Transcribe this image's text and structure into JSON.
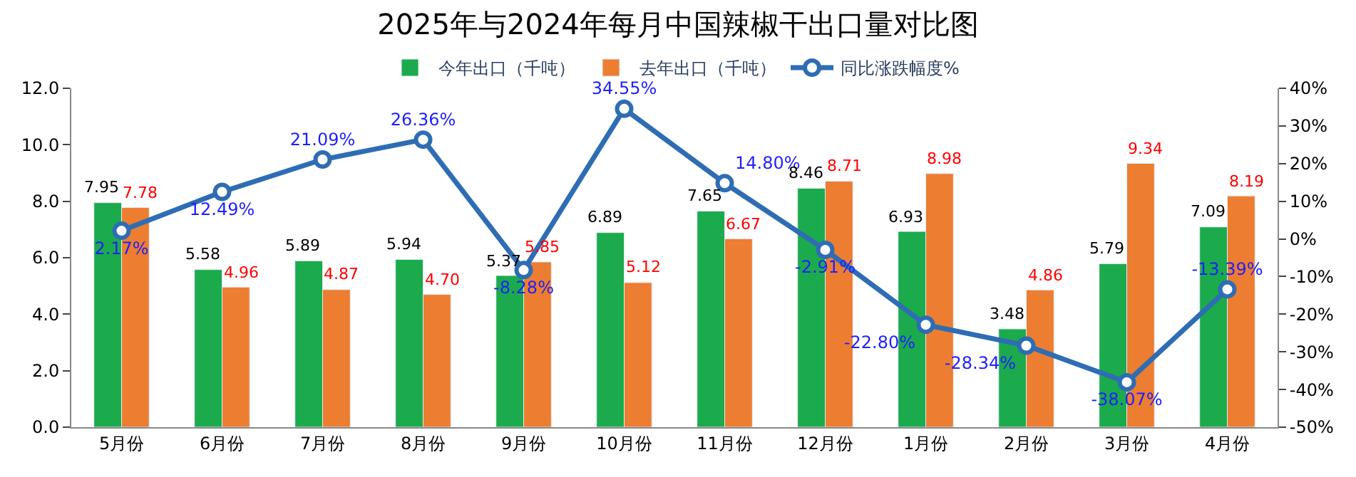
{
  "chart_data": {
    "type": "bar",
    "title": "2025年与2024年每月中国辣椒干出口量对比图",
    "categories": [
      "5月份",
      "6月份",
      "7月份",
      "8月份",
      "9月份",
      "10月份",
      "11月份",
      "12月份",
      "1月份",
      "2月份",
      "3月份",
      "4月份"
    ],
    "series": [
      {
        "name": "今年出口（千吨）",
        "color": "#1bab4c",
        "values": [
          7.95,
          5.58,
          5.89,
          5.94,
          5.37,
          6.89,
          7.65,
          8.46,
          6.93,
          3.48,
          5.79,
          7.09
        ],
        "value_labels": [
          "7.95",
          "5.58",
          "5.89",
          "5.94",
          "5.37",
          "6.89",
          "7.65",
          "8.46",
          "6.93",
          "3.48",
          "5.79",
          "7.09"
        ]
      },
      {
        "name": "去年出口（千吨）",
        "color": "#ed7d31",
        "values": [
          7.78,
          4.96,
          4.87,
          4.7,
          5.85,
          5.12,
          6.67,
          8.71,
          8.98,
          4.86,
          9.34,
          8.19
        ],
        "value_labels": [
          "7.78",
          "4.96",
          "4.87",
          "4.70",
          "5.85",
          "5.12",
          "6.67",
          "8.71",
          "8.98",
          "4.86",
          "9.34",
          "8.19"
        ]
      },
      {
        "name": "同比涨跌幅度%",
        "type": "line",
        "axis": "y2",
        "color": "#2e6db4",
        "marker": "circle",
        "values": [
          2.17,
          12.49,
          21.09,
          26.36,
          -8.28,
          34.55,
          14.8,
          -2.91,
          -22.8,
          -28.34,
          -38.07,
          -13.39
        ],
        "value_labels": [
          "2.17%",
          "12.49%",
          "21.09%",
          "26.36%",
          "-8.28%",
          "34.55%",
          "14.80%",
          "-2.91%",
          "-22.80%",
          "-28.34%",
          "-38.07%",
          "-13.39%"
        ]
      }
    ],
    "ylim": [
      0,
      12
    ],
    "yticks": [
      {
        "value": 0,
        "label": "0.0"
      },
      {
        "value": 2,
        "label": "2.0"
      },
      {
        "value": 4,
        "label": "4.0"
      },
      {
        "value": 6,
        "label": "6.0"
      },
      {
        "value": 8,
        "label": "8.0"
      },
      {
        "value": 10,
        "label": "10.0"
      },
      {
        "value": 12,
        "label": "12.0"
      }
    ],
    "y2lim": [
      -50,
      40
    ],
    "y2ticks": [
      {
        "value": -50,
        "label": "-50%"
      },
      {
        "value": -40,
        "label": "-40%"
      },
      {
        "value": -30,
        "label": "-30%"
      },
      {
        "value": -20,
        "label": "-20%"
      },
      {
        "value": -10,
        "label": "-10%"
      },
      {
        "value": 0,
        "label": "0%"
      },
      {
        "value": 10,
        "label": "10%"
      },
      {
        "value": 20,
        "label": "20%"
      },
      {
        "value": 30,
        "label": "30%"
      },
      {
        "value": 40,
        "label": "40%"
      }
    ],
    "legend": "top"
  }
}
